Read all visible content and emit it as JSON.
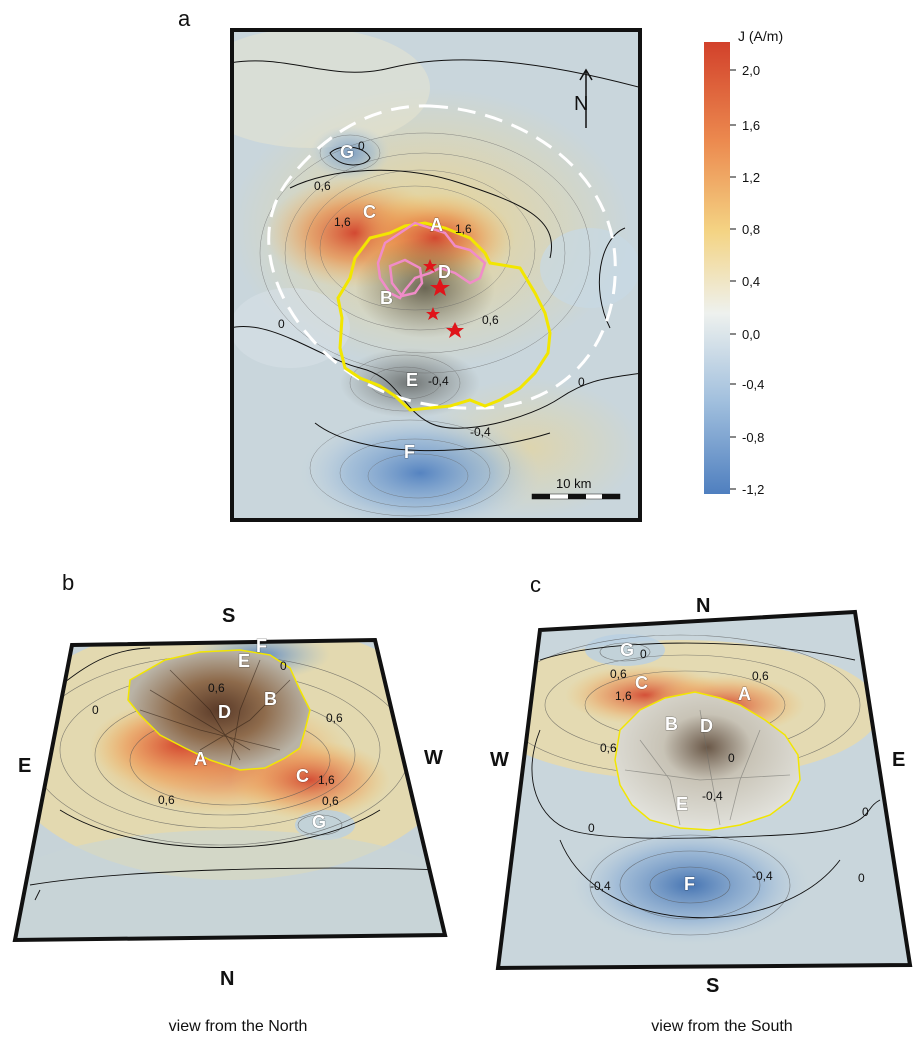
{
  "panels": {
    "a": {
      "letter": "a",
      "north_label": "N",
      "scale_label": "10 km",
      "anomaly_labels": [
        "A",
        "B",
        "C",
        "D",
        "E",
        "F",
        "G"
      ],
      "contour_labels": [
        "0",
        "0,6",
        "1,6",
        "1,6",
        "0,6",
        "0",
        "0",
        "-0,4",
        "-0,4"
      ]
    },
    "b": {
      "letter": "b",
      "caption": "view from the North",
      "directions": {
        "top": "S",
        "bottom": "N",
        "left": "E",
        "right": "W"
      },
      "anomaly_labels": [
        "F",
        "E",
        "B",
        "D",
        "A",
        "C",
        "G"
      ],
      "contour_labels": [
        "0,6",
        "0,6",
        "0,6",
        "1,6",
        "0,6",
        "0",
        "0"
      ]
    },
    "c": {
      "letter": "c",
      "caption": "view from the South",
      "directions": {
        "top": "N",
        "bottom": "S",
        "left": "W",
        "right": "E"
      },
      "anomaly_labels": [
        "G",
        "C",
        "A",
        "B",
        "D",
        "E",
        "F"
      ],
      "contour_labels": [
        "0",
        "0,6",
        "1,6",
        "0,6",
        "0,6",
        "0",
        "-0,4",
        "0",
        "-0,4",
        "-0,4",
        "0",
        "0"
      ]
    }
  },
  "colorbar": {
    "title": "J (A/m)",
    "ticks": [
      "2,0",
      "1,6",
      "1,2",
      "0,8",
      "0,4",
      "0,0",
      "-0,4",
      "-0,8",
      "-1,2"
    ],
    "colors": {
      "high": "#d2412b",
      "mid_high": "#f1c26a",
      "zero": "#eef1ee",
      "low": "#4f7fbf"
    }
  },
  "colors": {
    "outline_yellow": "#f2e600",
    "outline_pink": "#f08cc8",
    "dashed_white": "#ffffff",
    "star_red": "#e0141a"
  }
}
